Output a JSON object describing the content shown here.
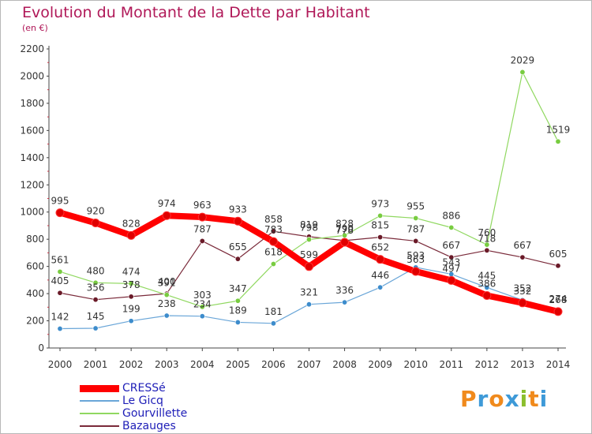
{
  "title": "Evolution du Montant de la Dette par Habitant",
  "subtitle": "(en €)",
  "logo_text": "Proxiti",
  "chart_data": {
    "type": "line",
    "x": [
      "2000",
      "2001",
      "2002",
      "2003",
      "2004",
      "2005",
      "2006",
      "2007",
      "2008",
      "2009",
      "2010",
      "2011",
      "2012",
      "2013",
      "2014"
    ],
    "ylim": [
      0,
      2200
    ],
    "yticks": [
      "0",
      "200",
      "400",
      "600",
      "800",
      "1000",
      "1200",
      "1400",
      "1600",
      "1800",
      "2000",
      "2200"
    ],
    "grid": false,
    "legend": "bottom-left",
    "series": [
      {
        "name": "CRESSé",
        "color": "#ff0000",
        "marker_fill": "#e00000",
        "width": 8,
        "values": [
          995,
          920,
          828,
          974,
          963,
          933,
          783,
          599,
          778,
          652,
          563,
          497,
          386,
          332,
          268
        ],
        "labels": [
          "995",
          "920",
          "828",
          "974",
          "963",
          "933",
          "783",
          "599",
          "778",
          "652",
          "563",
          "497",
          "386",
          "332",
          "268"
        ]
      },
      {
        "name": "Le Gicq",
        "color": "#6aa6d8",
        "marker_fill": "#3d8ccc",
        "width": 1.2,
        "values": [
          142,
          145,
          199,
          238,
          234,
          189,
          181,
          321,
          336,
          446,
          593,
          543,
          445,
          352,
          274
        ],
        "labels": [
          "142",
          "145",
          "199",
          "238",
          "234",
          "189",
          "181",
          "321",
          "336",
          "446",
          "593",
          "543",
          "445",
          "352",
          "274"
        ]
      },
      {
        "name": "Gourvillette",
        "color": "#90d860",
        "marker_fill": "#78cc40",
        "width": 1.2,
        "values": [
          561,
          480,
          474,
          391,
          303,
          347,
          618,
          798,
          828,
          973,
          955,
          886,
          760,
          2029,
          1519
        ],
        "labels": [
          "561",
          "480",
          "474",
          "391",
          "303",
          "347",
          "618",
          "798",
          "828",
          "973",
          "955",
          "886",
          "760",
          "2029",
          "1519"
        ]
      },
      {
        "name": "Bazauges",
        "color": "#7a2a3a",
        "marker_fill": "#6a1a28",
        "width": 1.2,
        "values": [
          405,
          356,
          378,
          400,
          787,
          655,
          858,
          819,
          790,
          815,
          787,
          667,
          718,
          667,
          605
        ],
        "labels": [
          "405",
          "356",
          "378",
          "400",
          "787",
          "655",
          "858",
          "819",
          "790",
          "815",
          "787",
          "667",
          "718",
          "667",
          "605"
        ]
      }
    ]
  }
}
